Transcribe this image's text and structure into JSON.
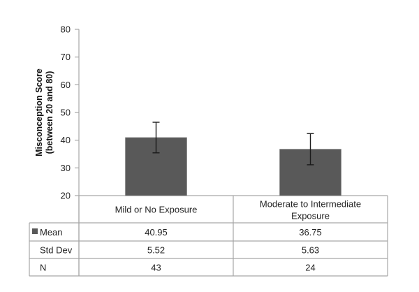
{
  "chart_data": {
    "type": "bar",
    "title": "",
    "xlabel": "",
    "ylabel": "Misconception Score (between 20 and 80)",
    "ylabel_lines": [
      "Misconception Score",
      "(between 20 and 80)"
    ],
    "ylim": [
      20,
      80
    ],
    "yticks": [
      20,
      30,
      40,
      50,
      60,
      70,
      80
    ],
    "grid": false,
    "categories": [
      "Mild or No Exposure",
      "Moderate to Intermediate Exposure"
    ],
    "category_lines": [
      [
        "Mild or No Exposure"
      ],
      [
        "Moderate to Intermediate",
        "Exposure"
      ]
    ],
    "series": [
      {
        "name": "Mean",
        "values": [
          40.95,
          36.75
        ],
        "error": [
          5.52,
          5.63
        ],
        "color": "#595959"
      }
    ],
    "legend_position": "data-table",
    "data_table": {
      "rows": [
        {
          "label": "Mean",
          "values": [
            "40.95",
            "36.75"
          ],
          "legend_key": true
        },
        {
          "label": "Std Dev",
          "values": [
            "5.52",
            "5.63"
          ],
          "legend_key": false
        },
        {
          "label": "N",
          "values": [
            "43",
            "24"
          ],
          "legend_key": false
        }
      ]
    }
  },
  "colors": {
    "bar": "#595959",
    "axis": "#a6a6a6",
    "error_bar": "#1a1a1a",
    "table_border": "#a6a6a6"
  }
}
